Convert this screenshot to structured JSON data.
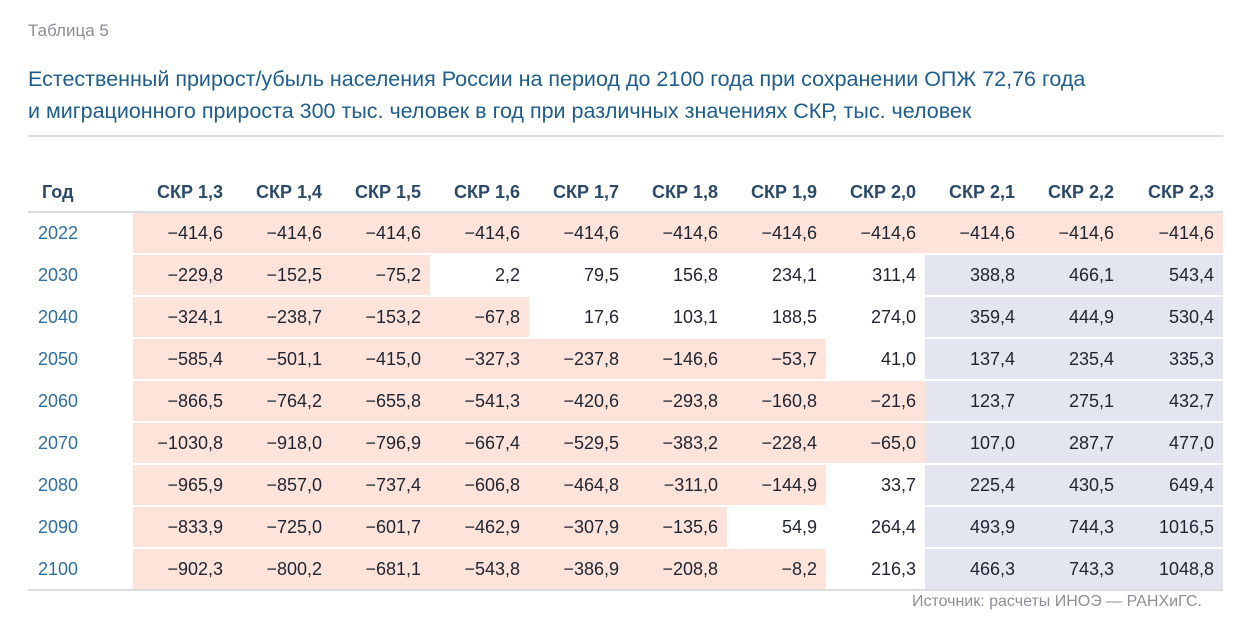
{
  "table_label": "Таблица 5",
  "title_line1": "Естественный прирост/убыль населения России на период до 2100 года при сохранении ОПЖ 72,76 года",
  "title_line2": "и миграционного прироста 300 тыс. человек в год при различных значениях СКР, тыс. человек",
  "header": {
    "year": "Год",
    "columns": [
      "СКР 1,3",
      "СКР 1,4",
      "СКР 1,5",
      "СКР 1,6",
      "СКР 1,7",
      "СКР 1,8",
      "СКР 1,9",
      "СКР 2,0",
      "СКР 2,1",
      "СКР 2,2",
      "СКР 2,3"
    ]
  },
  "rows": [
    {
      "year": "2022",
      "values": [
        "−414,6",
        "−414,6",
        "−414,6",
        "−414,6",
        "−414,6",
        "−414,6",
        "−414,6",
        "−414,6",
        "−414,6",
        "−414,6",
        "−414,6"
      ]
    },
    {
      "year": "2030",
      "values": [
        "−229,8",
        "−152,5",
        "−75,2",
        "2,2",
        "79,5",
        "156,8",
        "234,1",
        "311,4",
        "388,8",
        "466,1",
        "543,4"
      ]
    },
    {
      "year": "2040",
      "values": [
        "−324,1",
        "−238,7",
        "−153,2",
        "−67,8",
        "17,6",
        "103,1",
        "188,5",
        "274,0",
        "359,4",
        "444,9",
        "530,4"
      ]
    },
    {
      "year": "2050",
      "values": [
        "−585,4",
        "−501,1",
        "−415,0",
        "−327,3",
        "−237,8",
        "−146,6",
        "−53,7",
        "41,0",
        "137,4",
        "235,4",
        "335,3"
      ]
    },
    {
      "year": "2060",
      "values": [
        "−866,5",
        "−764,2",
        "−655,8",
        "−541,3",
        "−420,6",
        "−293,8",
        "−160,8",
        "−21,6",
        "123,7",
        "275,1",
        "432,7"
      ]
    },
    {
      "year": "2070",
      "values": [
        "−1030,8",
        "−918,0",
        "−796,9",
        "−667,4",
        "−529,5",
        "−383,2",
        "−228,4",
        "−65,0",
        "107,0",
        "287,7",
        "477,0"
      ]
    },
    {
      "year": "2080",
      "values": [
        "−965,9",
        "−857,0",
        "−737,4",
        "−606,8",
        "−464,8",
        "−311,0",
        "−144,9",
        "33,7",
        "225,4",
        "430,5",
        "649,4"
      ]
    },
    {
      "year": "2090",
      "values": [
        "−833,9",
        "−725,0",
        "−601,7",
        "−462,9",
        "−307,9",
        "−135,6",
        "54,9",
        "264,4",
        "493,9",
        "744,3",
        "1016,5"
      ]
    },
    {
      "year": "2100",
      "values": [
        "−902,3",
        "−800,2",
        "−681,1",
        "−543,8",
        "−386,9",
        "−208,8",
        "−8,2",
        "216,3",
        "466,3",
        "743,3",
        "1048,8"
      ]
    }
  ],
  "source": "Источник: расчеты ИНОЭ — РАНХиГС.",
  "colors": {
    "negative_cell": "#fde3d9",
    "highlight_cell": "#e3e6f1",
    "title": "#1e5d8c"
  }
}
